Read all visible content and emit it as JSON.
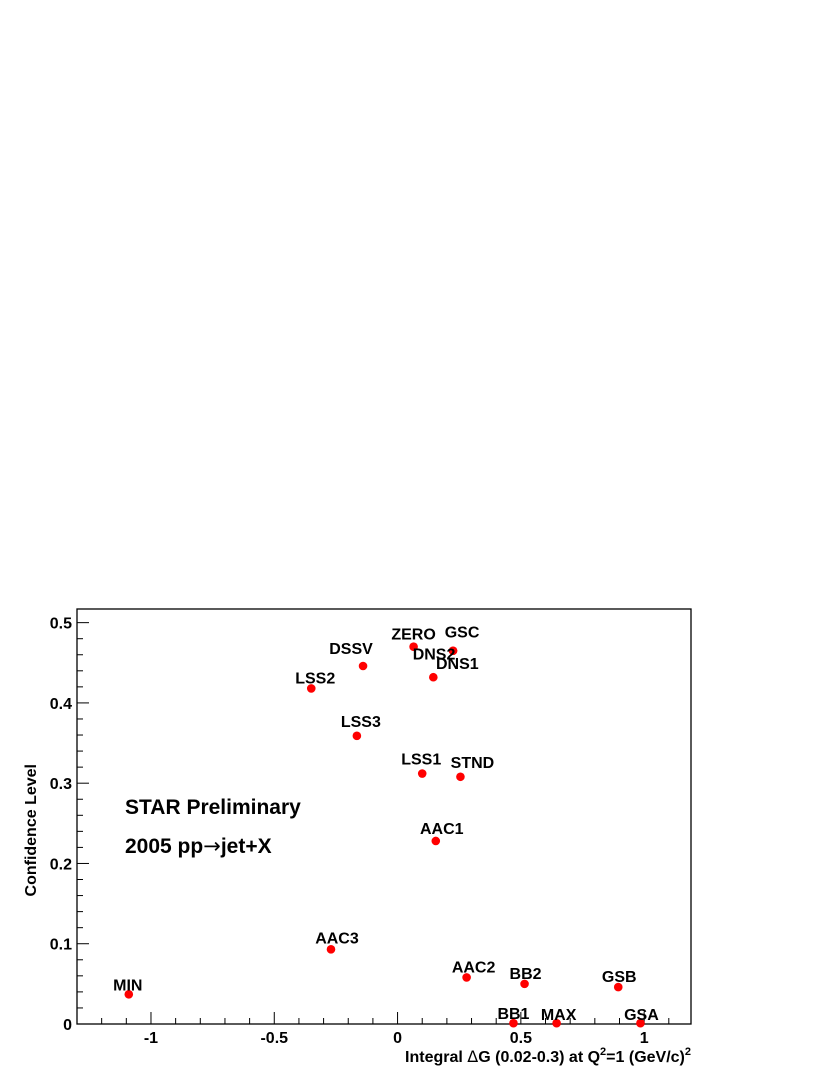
{
  "chart_data": {
    "type": "scatter",
    "title": "",
    "xlabel": {
      "prefix": "Integral ",
      "delta": "Δ",
      "mid": "G (0.02-0.3) at Q",
      "sup1": "2",
      "mid2": "=1 (GeV/c)",
      "sup2": "2"
    },
    "ylabel": "Confidence Level",
    "xlim": [
      -1.3,
      1.19
    ],
    "ylim": [
      0,
      0.517
    ],
    "xticks": [
      -1,
      -0.5,
      0,
      0.5,
      1
    ],
    "xtick_labels": [
      "-1",
      "-0.5",
      "0",
      "0.5",
      "1"
    ],
    "yticks": [
      0,
      0.1,
      0.2,
      0.3,
      0.4,
      0.5
    ],
    "ytick_labels": [
      "0",
      "0.1",
      "0.2",
      "0.3",
      "0.4",
      "0.5"
    ],
    "grid": false,
    "marker_color": "#ff0000",
    "points": [
      {
        "label": "MIN",
        "x": -1.09,
        "y": 0.037
      },
      {
        "label": "LSS2",
        "x": -0.35,
        "y": 0.418
      },
      {
        "label": "DSSV",
        "x": -0.14,
        "y": 0.446
      },
      {
        "label": "LSS3",
        "x": -0.165,
        "y": 0.359
      },
      {
        "label": "AAC3",
        "x": -0.27,
        "y": 0.093
      },
      {
        "label": "ZERO",
        "x": 0.065,
        "y": 0.47
      },
      {
        "label": "GSC",
        "x": 0.225,
        "y": 0.465
      },
      {
        "label": "DNS2",
        "x": 0.225,
        "y": 0.465
      },
      {
        "label": "DNS1",
        "x": 0.145,
        "y": 0.432
      },
      {
        "label": "LSS1",
        "x": 0.1,
        "y": 0.312
      },
      {
        "label": "STND",
        "x": 0.255,
        "y": 0.308
      },
      {
        "label": "AAC1",
        "x": 0.155,
        "y": 0.228
      },
      {
        "label": "AAC2",
        "x": 0.28,
        "y": 0.058
      },
      {
        "label": "BB2",
        "x": 0.515,
        "y": 0.05
      },
      {
        "label": "BB1",
        "x": 0.47,
        "y": 0.001
      },
      {
        "label": "MAX",
        "x": 0.645,
        "y": 0.001
      },
      {
        "label": "GSB",
        "x": 0.895,
        "y": 0.046
      },
      {
        "label": "GSA",
        "x": 0.985,
        "y": 0.001
      }
    ],
    "annotations": {
      "line1": "STAR Preliminary",
      "line2_a": "2005  pp",
      "line2_arrow": "→",
      "line2_b": "jet+X"
    }
  }
}
